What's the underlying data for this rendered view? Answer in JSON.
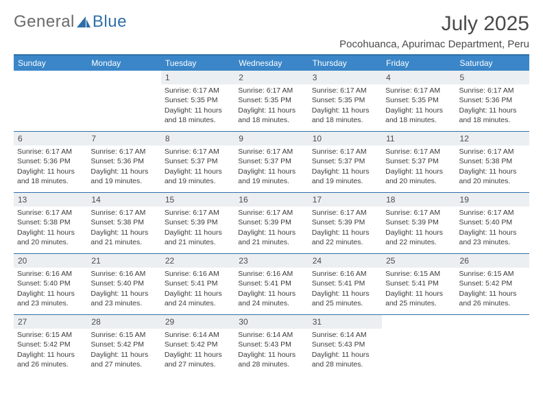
{
  "logo": {
    "text1": "General",
    "text2": "Blue",
    "color_gray": "#6a6a6a",
    "color_blue": "#2f6fa8"
  },
  "title": "July 2025",
  "location": "Pocohuanca, Apurimac Department, Peru",
  "colors": {
    "header_bg": "#3a86c8",
    "header_fg": "#ffffff",
    "rule": "#2f6fa8",
    "daynum_bg": "#eceff1",
    "text": "#3a3a3a"
  },
  "weekdays": [
    "Sunday",
    "Monday",
    "Tuesday",
    "Wednesday",
    "Thursday",
    "Friday",
    "Saturday"
  ],
  "weeks": [
    [
      null,
      null,
      {
        "n": "1",
        "sr": "6:17 AM",
        "ss": "5:35 PM",
        "dl": "11 hours and 18 minutes."
      },
      {
        "n": "2",
        "sr": "6:17 AM",
        "ss": "5:35 PM",
        "dl": "11 hours and 18 minutes."
      },
      {
        "n": "3",
        "sr": "6:17 AM",
        "ss": "5:35 PM",
        "dl": "11 hours and 18 minutes."
      },
      {
        "n": "4",
        "sr": "6:17 AM",
        "ss": "5:35 PM",
        "dl": "11 hours and 18 minutes."
      },
      {
        "n": "5",
        "sr": "6:17 AM",
        "ss": "5:36 PM",
        "dl": "11 hours and 18 minutes."
      }
    ],
    [
      {
        "n": "6",
        "sr": "6:17 AM",
        "ss": "5:36 PM",
        "dl": "11 hours and 18 minutes."
      },
      {
        "n": "7",
        "sr": "6:17 AM",
        "ss": "5:36 PM",
        "dl": "11 hours and 19 minutes."
      },
      {
        "n": "8",
        "sr": "6:17 AM",
        "ss": "5:37 PM",
        "dl": "11 hours and 19 minutes."
      },
      {
        "n": "9",
        "sr": "6:17 AM",
        "ss": "5:37 PM",
        "dl": "11 hours and 19 minutes."
      },
      {
        "n": "10",
        "sr": "6:17 AM",
        "ss": "5:37 PM",
        "dl": "11 hours and 19 minutes."
      },
      {
        "n": "11",
        "sr": "6:17 AM",
        "ss": "5:37 PM",
        "dl": "11 hours and 20 minutes."
      },
      {
        "n": "12",
        "sr": "6:17 AM",
        "ss": "5:38 PM",
        "dl": "11 hours and 20 minutes."
      }
    ],
    [
      {
        "n": "13",
        "sr": "6:17 AM",
        "ss": "5:38 PM",
        "dl": "11 hours and 20 minutes."
      },
      {
        "n": "14",
        "sr": "6:17 AM",
        "ss": "5:38 PM",
        "dl": "11 hours and 21 minutes."
      },
      {
        "n": "15",
        "sr": "6:17 AM",
        "ss": "5:39 PM",
        "dl": "11 hours and 21 minutes."
      },
      {
        "n": "16",
        "sr": "6:17 AM",
        "ss": "5:39 PM",
        "dl": "11 hours and 21 minutes."
      },
      {
        "n": "17",
        "sr": "6:17 AM",
        "ss": "5:39 PM",
        "dl": "11 hours and 22 minutes."
      },
      {
        "n": "18",
        "sr": "6:17 AM",
        "ss": "5:39 PM",
        "dl": "11 hours and 22 minutes."
      },
      {
        "n": "19",
        "sr": "6:17 AM",
        "ss": "5:40 PM",
        "dl": "11 hours and 23 minutes."
      }
    ],
    [
      {
        "n": "20",
        "sr": "6:16 AM",
        "ss": "5:40 PM",
        "dl": "11 hours and 23 minutes."
      },
      {
        "n": "21",
        "sr": "6:16 AM",
        "ss": "5:40 PM",
        "dl": "11 hours and 23 minutes."
      },
      {
        "n": "22",
        "sr": "6:16 AM",
        "ss": "5:41 PM",
        "dl": "11 hours and 24 minutes."
      },
      {
        "n": "23",
        "sr": "6:16 AM",
        "ss": "5:41 PM",
        "dl": "11 hours and 24 minutes."
      },
      {
        "n": "24",
        "sr": "6:16 AM",
        "ss": "5:41 PM",
        "dl": "11 hours and 25 minutes."
      },
      {
        "n": "25",
        "sr": "6:15 AM",
        "ss": "5:41 PM",
        "dl": "11 hours and 25 minutes."
      },
      {
        "n": "26",
        "sr": "6:15 AM",
        "ss": "5:42 PM",
        "dl": "11 hours and 26 minutes."
      }
    ],
    [
      {
        "n": "27",
        "sr": "6:15 AM",
        "ss": "5:42 PM",
        "dl": "11 hours and 26 minutes."
      },
      {
        "n": "28",
        "sr": "6:15 AM",
        "ss": "5:42 PM",
        "dl": "11 hours and 27 minutes."
      },
      {
        "n": "29",
        "sr": "6:14 AM",
        "ss": "5:42 PM",
        "dl": "11 hours and 27 minutes."
      },
      {
        "n": "30",
        "sr": "6:14 AM",
        "ss": "5:43 PM",
        "dl": "11 hours and 28 minutes."
      },
      {
        "n": "31",
        "sr": "6:14 AM",
        "ss": "5:43 PM",
        "dl": "11 hours and 28 minutes."
      },
      null,
      null
    ]
  ],
  "labels": {
    "sunrise": "Sunrise: ",
    "sunset": "Sunset: ",
    "daylight": "Daylight: "
  }
}
